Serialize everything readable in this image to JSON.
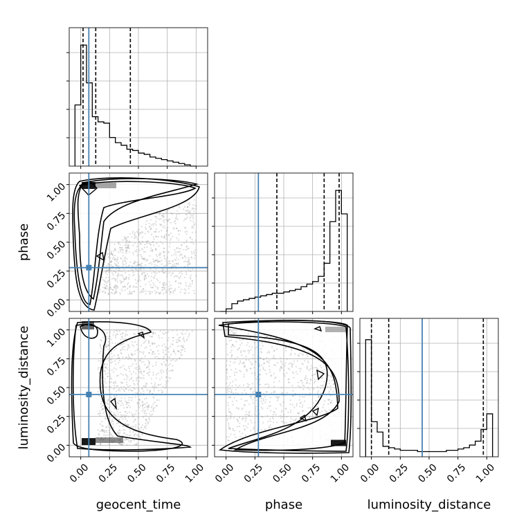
{
  "chart_data": {
    "type": "corner",
    "parameters": [
      {
        "name": "geocent_time",
        "truth": 0.07,
        "quantiles": [
          0.02,
          0.13,
          0.43
        ]
      },
      {
        "name": "phase",
        "truth": 0.28,
        "quantiles": [
          0.44,
          0.85,
          0.98
        ]
      },
      {
        "name": "luminosity_distance",
        "truth": 0.44,
        "quantiles": [
          0.0,
          0.15,
          0.97
        ]
      }
    ],
    "ticks": [
      "0.00",
      "0.25",
      "0.50",
      "0.75",
      "1.00"
    ],
    "range": [
      -0.1,
      1.1
    ],
    "colors": {
      "truth": "#4682b4",
      "line": "#000000",
      "grid": "#b0b0b0",
      "scatter": "#9a9a9a"
    },
    "histograms": {
      "geocent_time": {
        "edges": [
          -0.05,
          0.0,
          0.05,
          0.1,
          0.15,
          0.2,
          0.25,
          0.3,
          0.35,
          0.4,
          0.45,
          0.5,
          0.55,
          0.6,
          0.65,
          0.7,
          0.75,
          0.8,
          0.85,
          0.9,
          0.95,
          1.0
        ],
        "values": [
          0.47,
          0.93,
          0.64,
          0.38,
          0.34,
          0.33,
          0.22,
          0.18,
          0.16,
          0.13,
          0.12,
          0.1,
          0.09,
          0.07,
          0.06,
          0.05,
          0.04,
          0.03,
          0.02,
          0.01,
          0.0
        ]
      },
      "phase": {
        "edges": [
          -0.05,
          0.0,
          0.05,
          0.1,
          0.15,
          0.2,
          0.25,
          0.3,
          0.35,
          0.4,
          0.45,
          0.5,
          0.55,
          0.6,
          0.65,
          0.7,
          0.75,
          0.8,
          0.85,
          0.9,
          0.95,
          1.0,
          1.05
        ],
        "values": [
          0.0,
          0.02,
          0.06,
          0.08,
          0.09,
          0.1,
          0.11,
          0.12,
          0.13,
          0.14,
          0.14,
          0.15,
          0.16,
          0.17,
          0.19,
          0.21,
          0.23,
          0.27,
          0.37,
          0.69,
          0.93,
          0.75
        ]
      },
      "luminosity_distance": {
        "edges": [
          -0.05,
          0.0,
          0.05,
          0.1,
          0.15,
          0.2,
          0.25,
          0.3,
          0.35,
          0.4,
          0.45,
          0.5,
          0.55,
          0.6,
          0.65,
          0.7,
          0.75,
          0.8,
          0.85,
          0.9,
          0.95,
          1.0,
          1.05
        ],
        "values": [
          0.9,
          0.27,
          0.19,
          0.08,
          0.07,
          0.06,
          0.05,
          0.05,
          0.05,
          0.04,
          0.04,
          0.04,
          0.04,
          0.04,
          0.05,
          0.05,
          0.06,
          0.07,
          0.09,
          0.12,
          0.21,
          0.33
        ]
      }
    },
    "panels_2d": [
      {
        "x": "geocent_time",
        "y": "phase"
      },
      {
        "x": "geocent_time",
        "y": "luminosity_distance"
      },
      {
        "x": "phase",
        "y": "luminosity_distance"
      }
    ]
  }
}
